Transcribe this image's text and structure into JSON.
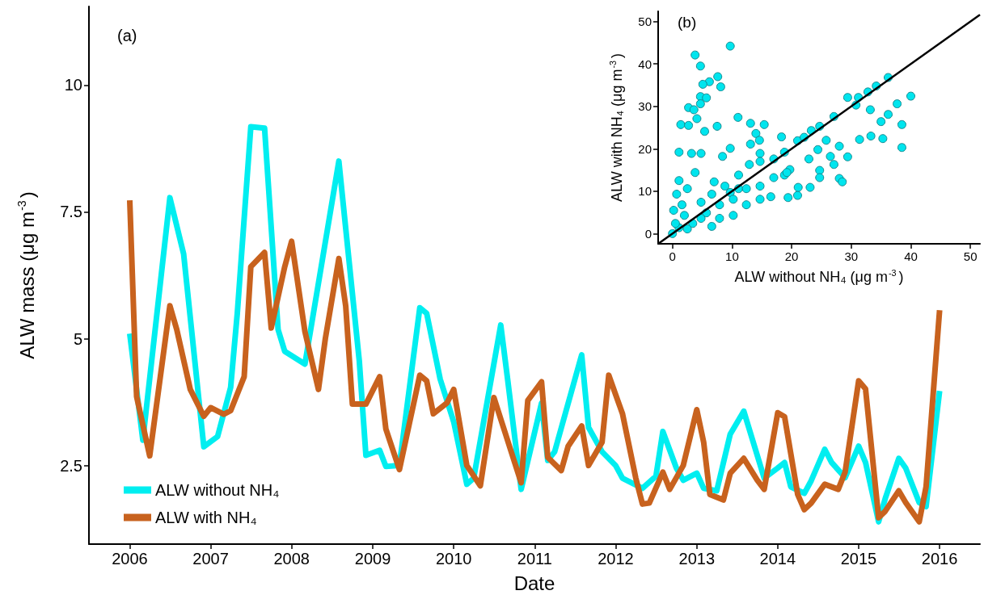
{
  "chart_data": [
    {
      "type": "line",
      "xlabel": "Date",
      "ylabel": "ALW mass (μg m$^{-3}$)",
      "annotations": [
        "(a)"
      ],
      "xlim": [
        "2005-07",
        "2016-07"
      ],
      "xticks": [
        "2006",
        "2007",
        "2008",
        "2009",
        "2010",
        "2011",
        "2012",
        "2013",
        "2014",
        "2015",
        "2016"
      ],
      "ylim": [
        0.95,
        11.55
      ],
      "yticks": [
        2.5,
        5,
        7.5,
        10
      ],
      "grid": false,
      "legend": "bottom left",
      "line_style": "solid",
      "series": [
        {
          "name": "ALW without NH₄",
          "color": "#00eef0",
          "x": [
            "2006-01",
            "2006-03",
            "2006-07",
            "2006-09",
            "2006-12",
            "2007-02",
            "2007-04",
            "2007-05",
            "2007-07",
            "2007-09",
            "2007-11",
            "2007-12",
            "2008-03",
            "2008-08",
            "2008-09",
            "2008-11",
            "2008-12",
            "2009-02",
            "2009-03",
            "2009-05",
            "2009-08",
            "2009-09",
            "2009-11",
            "2010-01",
            "2010-03",
            "2010-04",
            "2010-08",
            "2010-09",
            "2010-11",
            "2011-02",
            "2011-03",
            "2011-04",
            "2011-08",
            "2011-09",
            "2011-11",
            "2012-01",
            "2012-02",
            "2012-05",
            "2012-07",
            "2012-08",
            "2012-10",
            "2012-11",
            "2013-01",
            "2013-02",
            "2013-04",
            "2013-06",
            "2013-08",
            "2013-11",
            "2014-01",
            "2014-02",
            "2014-03",
            "2014-05",
            "2014-06",
            "2014-08",
            "2014-09",
            "2014-11",
            "2015-01",
            "2015-02",
            "2015-04",
            "2015-05",
            "2015-07",
            "2015-08",
            "2015-10",
            "2015-11",
            "2016-01"
          ],
          "values": [
            5.1,
            3.0,
            7.78,
            6.67,
            2.87,
            3.07,
            4.04,
            5.5,
            9.18,
            9.15,
            5.18,
            4.75,
            4.5,
            8.5,
            7.17,
            4.57,
            2.7,
            2.8,
            2.48,
            2.5,
            5.61,
            5.5,
            4.2,
            3.36,
            2.13,
            2.25,
            5.27,
            4.2,
            2.03,
            3.73,
            2.6,
            2.77,
            4.68,
            3.25,
            2.77,
            2.5,
            2.25,
            2.05,
            2.29,
            3.17,
            2.45,
            2.21,
            2.35,
            2.05,
            2.0,
            3.12,
            3.57,
            2.25,
            2.45,
            2.56,
            2.08,
            1.95,
            2.2,
            2.82,
            2.56,
            2.26,
            2.88,
            2.56,
            1.39,
            1.85,
            2.64,
            2.45,
            1.77,
            1.69,
            3.97
          ]
        },
        {
          "name": "ALW with NH₄",
          "color": "#c8621e",
          "x": [
            "2006-01",
            "2006-02",
            "2006-04",
            "2006-07",
            "2006-08",
            "2006-10",
            "2006-12",
            "2007-01",
            "2007-03",
            "2007-04",
            "2007-06",
            "2007-07",
            "2007-09",
            "2007-10",
            "2007-12",
            "2008-01",
            "2008-03",
            "2008-05",
            "2008-06",
            "2008-08",
            "2008-09",
            "2008-10",
            "2008-12",
            "2009-02",
            "2009-03",
            "2009-05",
            "2009-08",
            "2009-09",
            "2009-10",
            "2009-12",
            "2010-01",
            "2010-03",
            "2010-05",
            "2010-07",
            "2010-11",
            "2010-12",
            "2011-02",
            "2011-03",
            "2011-05",
            "2011-06",
            "2011-08",
            "2011-09",
            "2011-11",
            "2011-12",
            "2012-02",
            "2012-04",
            "2012-05",
            "2012-06",
            "2012-08",
            "2012-09",
            "2012-11",
            "2013-01",
            "2013-02",
            "2013-03",
            "2013-05",
            "2013-06",
            "2013-08",
            "2013-10",
            "2013-11",
            "2014-01",
            "2014-02",
            "2014-04",
            "2014-05",
            "2014-06",
            "2014-08",
            "2014-10",
            "2014-11",
            "2015-01",
            "2015-02",
            "2015-04",
            "2015-05",
            "2015-07",
            "2015-08",
            "2015-10",
            "2015-11",
            "2016-01"
          ],
          "values": [
            7.73,
            3.86,
            2.69,
            5.65,
            5.18,
            4.0,
            3.47,
            3.64,
            3.51,
            3.58,
            4.25,
            6.42,
            6.7,
            5.21,
            6.42,
            6.92,
            5.14,
            4.0,
            5.0,
            6.58,
            5.64,
            3.71,
            3.71,
            4.25,
            3.22,
            2.42,
            4.28,
            4.17,
            3.52,
            3.73,
            4.0,
            2.5,
            2.1,
            3.84,
            2.16,
            3.78,
            4.15,
            2.66,
            2.4,
            2.88,
            3.28,
            2.5,
            2.96,
            4.28,
            3.52,
            2.25,
            1.74,
            1.76,
            2.37,
            2.03,
            2.5,
            3.6,
            2.96,
            1.93,
            1.82,
            2.35,
            2.64,
            2.21,
            2.03,
            3.54,
            3.46,
            1.93,
            1.63,
            1.76,
            2.13,
            2.03,
            2.37,
            4.17,
            4.01,
            1.47,
            1.6,
            2.0,
            1.77,
            1.39,
            2.08,
            5.56
          ]
        }
      ]
    },
    {
      "type": "scatter",
      "xlabel": "ALW without NH₄ (μg m$^{-3}$)",
      "ylabel": "ALW with NH₄ (μg m$^{-3}$)",
      "annotations": [
        "(b)"
      ],
      "xlim": [
        -2.4,
        51.6
      ],
      "xticks": [
        0,
        10,
        20,
        30,
        40,
        50
      ],
      "ylim": [
        -2.4,
        52.4
      ],
      "yticks": [
        0,
        10,
        20,
        30,
        40,
        50
      ],
      "grid": false,
      "marker": "circle",
      "series": [
        {
          "color": "#00e5ee",
          "x": [
            9.7,
            3.8,
            4.7,
            7.6,
            6.2,
            5.1,
            8.1,
            4.7,
            5.7,
            4.7,
            2.7,
            3.6,
            4.1,
            11,
            13.1,
            15.4,
            1.4,
            2.7,
            7.5,
            5.4,
            14,
            14.6,
            18.3,
            21,
            22.1,
            23.3,
            24.7,
            27.1,
            29.4,
            31.2,
            32.8,
            34.2,
            36.2,
            40,
            37.7,
            30.8,
            33.2,
            36.2,
            35,
            38.5,
            33.3,
            31.4,
            35.3,
            38.5,
            28,
            29.4,
            25.8,
            24.4,
            26.5,
            27.1,
            22.9,
            24.7,
            24.7,
            28,
            28.5,
            23.1,
            21,
            19.4,
            21.1,
            18.8,
            19.7,
            14.7,
            13.1,
            8.4,
            9.7,
            7,
            9.7,
            11.1,
            3.8,
            1.1,
            3.2,
            4.8,
            1.1,
            1.6,
            2.5,
            5.7,
            7.9,
            10.2,
            12.4,
            14.7,
            17,
            19.2,
            7.9,
            10.2,
            12.4,
            14.7,
            16.5,
            3.4,
            1.1,
            0,
            0.5,
            2,
            4.8,
            6.6,
            8.8,
            11.1,
            12.9,
            14.7,
            17,
            18.8,
            0.2,
            0.7,
            4.8,
            2.5,
            6.6
          ],
          "values": [
            44.2,
            42.1,
            39.5,
            37,
            35.8,
            35.2,
            34.6,
            32.3,
            32,
            30.6,
            29.7,
            29.2,
            27.1,
            27.4,
            26,
            25.7,
            25.7,
            25.5,
            25.3,
            24.1,
            23.6,
            22,
            22.8,
            21.9,
            22.7,
            24.3,
            25.3,
            27.6,
            32.1,
            32.1,
            33.4,
            34.8,
            36.8,
            32.4,
            30.6,
            30.3,
            29.2,
            28.1,
            26.4,
            25.7,
            23,
            22.2,
            22.4,
            20.3,
            20.6,
            18.1,
            22,
            19.8,
            18.2,
            16.3,
            17.6,
            14.9,
            13.2,
            13,
            12.2,
            10.9,
            9,
            8.5,
            10.9,
            13.8,
            15.1,
            18.9,
            21.1,
            18.2,
            20.1,
            12.2,
            9.7,
            10.6,
            14.4,
            19.2,
            18.9,
            18.9,
            12.5,
            6.8,
            10.6,
            4.9,
            6.8,
            8.1,
            10.6,
            11.2,
            13.2,
            14.4,
            3.6,
            4.3,
            6.8,
            8.1,
            8.7,
            2.4,
            1.4,
            0,
            2.4,
            4.3,
            7.4,
            9.3,
            11.2,
            13.8,
            16.3,
            17,
            17.6,
            19.2,
            5.5,
            9.3,
            3.6,
            1.1,
            1.7
          ]
        },
        {
          "type": "line",
          "color": "#000000",
          "marker": "none",
          "x": [
            -2.4,
            51.6
          ],
          "values": [
            -2.4,
            51.6
          ]
        }
      ]
    }
  ]
}
